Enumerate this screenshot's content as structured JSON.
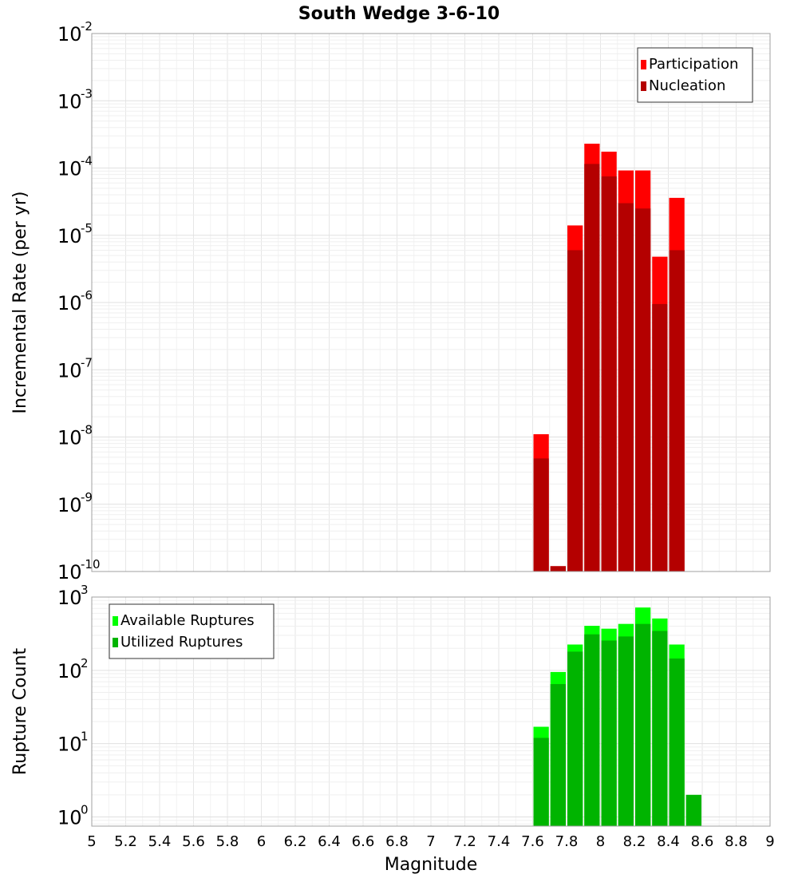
{
  "chart_data": [
    {
      "type": "bar",
      "title": "South Wedge 3-6-10",
      "xlabel": "Magnitude",
      "ylabel": "Incremental Rate (per yr)",
      "yscale": "log",
      "xlim": [
        5,
        9
      ],
      "ylim": [
        1e-10,
        0.01
      ],
      "ytick_exponents": [
        "-10",
        "-9",
        "-8",
        "-7",
        "-6",
        "-5",
        "-4",
        "-3",
        "-2"
      ],
      "legend_position": "top-right",
      "grid": true,
      "bin_width": 0.1,
      "x": [
        7.65,
        7.75,
        7.85,
        7.95,
        8.05,
        8.15,
        8.25,
        8.35,
        8.45
      ],
      "series": [
        {
          "name": "Participation",
          "color": "#ff0000",
          "values": [
            1.1e-08,
            1.2e-10,
            1.4e-05,
            0.00023,
            0.000175,
            9.2e-05,
            9.2e-05,
            4.8e-06,
            3.6e-05
          ]
        },
        {
          "name": "Nucleation",
          "color": "#b40000",
          "values": [
            4.8e-09,
            1.2e-10,
            6e-06,
            0.000115,
            7.5e-05,
            3e-05,
            2.5e-05,
            9.5e-07,
            6e-06
          ]
        }
      ]
    },
    {
      "type": "bar",
      "xlabel": "Magnitude",
      "ylabel": "Rupture Count",
      "yscale": "log",
      "xlim": [
        5,
        9
      ],
      "ylim": [
        0.75,
        1000
      ],
      "ytick_exponents": [
        "0",
        "1",
        "2",
        "3"
      ],
      "legend_position": "top-left",
      "grid": true,
      "bin_width": 0.1,
      "x": [
        7.65,
        7.75,
        7.85,
        7.95,
        8.05,
        8.15,
        8.25,
        8.35,
        8.45,
        8.55
      ],
      "x_ticks": [
        "5",
        "5.2",
        "5.4",
        "5.6",
        "5.8",
        "6",
        "6.2",
        "6.4",
        "6.6",
        "6.8",
        "7",
        "7.2",
        "7.4",
        "7.6",
        "7.8",
        "8",
        "8.2",
        "8.4",
        "8.6",
        "8.8",
        "9"
      ],
      "series": [
        {
          "name": "Available Ruptures",
          "color": "#00ff00",
          "values": [
            17,
            95,
            225,
            405,
            370,
            430,
            720,
            510,
            225,
            2
          ]
        },
        {
          "name": "Utilized Ruptures",
          "color": "#00b400",
          "values": [
            12,
            65,
            180,
            310,
            255,
            290,
            430,
            345,
            145,
            2
          ]
        }
      ]
    }
  ]
}
